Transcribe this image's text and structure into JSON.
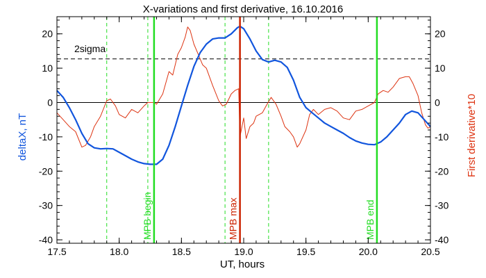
{
  "chart_data": {
    "type": "line",
    "title": "X-variations and first derivative, 16.10.2016",
    "xlabel": "UT, hours",
    "ylabel_left": "deltaX, nT",
    "ylabel_right": "First derivative*10",
    "xlim": [
      17.5,
      20.5
    ],
    "ylim_left": [
      -41,
      25
    ],
    "ylim_right": [
      -41,
      25
    ],
    "x_ticks": [
      "17.5",
      "18.0",
      "18.5",
      "19.0",
      "19.5",
      "20.0",
      "20.5"
    ],
    "y_ticks": [
      "20",
      "10",
      "0",
      "-10",
      "-20",
      "-30",
      "-40"
    ],
    "threshold": {
      "label": "2sigma",
      "value": 12.7
    },
    "vertical_markers": [
      {
        "x": 18.28,
        "label": "MPB begin",
        "color": "#22dd22",
        "style": "solid"
      },
      {
        "x": 18.97,
        "label": "MPB max",
        "color": "#cc2200",
        "style": "solid"
      },
      {
        "x": 20.07,
        "label": "MPB end",
        "color": "#22dd22",
        "style": "solid"
      }
    ],
    "dashed_markers": [
      {
        "x": 17.9,
        "color": "#22dd22"
      },
      {
        "x": 18.23,
        "color": "#22dd22"
      },
      {
        "x": 18.85,
        "color": "#22dd22"
      },
      {
        "x": 19.2,
        "color": "#22dd22"
      }
    ],
    "series": [
      {
        "name": "deltaX, nT",
        "color": "#1155dd",
        "axis": "left",
        "points": [
          [
            17.5,
            3.5
          ],
          [
            17.55,
            1.5
          ],
          [
            17.6,
            -1.5
          ],
          [
            17.65,
            -5
          ],
          [
            17.7,
            -9
          ],
          [
            17.75,
            -12
          ],
          [
            17.8,
            -13.2
          ],
          [
            17.85,
            -13.5
          ],
          [
            17.9,
            -13.4
          ],
          [
            17.95,
            -13.5
          ],
          [
            18.0,
            -14.5
          ],
          [
            18.05,
            -15.5
          ],
          [
            18.1,
            -16.5
          ],
          [
            18.15,
            -17.3
          ],
          [
            18.2,
            -17.8
          ],
          [
            18.25,
            -18.0
          ],
          [
            18.3,
            -18.0
          ],
          [
            18.35,
            -16.5
          ],
          [
            18.4,
            -12.5
          ],
          [
            18.45,
            -7
          ],
          [
            18.5,
            -1
          ],
          [
            18.55,
            5
          ],
          [
            18.6,
            10.5
          ],
          [
            18.65,
            14.5
          ],
          [
            18.7,
            17
          ],
          [
            18.75,
            18.5
          ],
          [
            18.8,
            18.8
          ],
          [
            18.85,
            18.8
          ],
          [
            18.9,
            20
          ],
          [
            18.95,
            21.8
          ],
          [
            18.97,
            22.2
          ],
          [
            19.0,
            21.5
          ],
          [
            19.05,
            18.5
          ],
          [
            19.1,
            15
          ],
          [
            19.15,
            12.5
          ],
          [
            19.2,
            11.8
          ],
          [
            19.25,
            12.3
          ],
          [
            19.3,
            11.8
          ],
          [
            19.35,
            10.2
          ],
          [
            19.4,
            6.5
          ],
          [
            19.45,
            1.5
          ],
          [
            19.5,
            -1.5
          ],
          [
            19.55,
            -3
          ],
          [
            19.6,
            -4.5
          ],
          [
            19.65,
            -6
          ],
          [
            19.7,
            -7
          ],
          [
            19.75,
            -8
          ],
          [
            19.8,
            -9
          ],
          [
            19.85,
            -10.2
          ],
          [
            19.9,
            -11.2
          ],
          [
            19.95,
            -11.8
          ],
          [
            20.0,
            -12.2
          ],
          [
            20.05,
            -12.3
          ],
          [
            20.1,
            -11.5
          ],
          [
            20.15,
            -10
          ],
          [
            20.2,
            -8
          ],
          [
            20.25,
            -6
          ],
          [
            20.3,
            -3.5
          ],
          [
            20.35,
            -2.5
          ],
          [
            20.4,
            -3
          ],
          [
            20.45,
            -5
          ],
          [
            20.5,
            -7
          ]
        ]
      },
      {
        "name": "First derivative*10",
        "color": "#dd3311",
        "axis": "right",
        "points": [
          [
            17.5,
            -3
          ],
          [
            17.55,
            -5
          ],
          [
            17.6,
            -7
          ],
          [
            17.65,
            -8.5
          ],
          [
            17.7,
            -13
          ],
          [
            17.73,
            -12.5
          ],
          [
            17.77,
            -10
          ],
          [
            17.8,
            -7
          ],
          [
            17.85,
            -4
          ],
          [
            17.9,
            0.5
          ],
          [
            17.93,
            1
          ],
          [
            17.97,
            -1
          ],
          [
            18.0,
            -3.5
          ],
          [
            18.05,
            -4.5
          ],
          [
            18.1,
            -2
          ],
          [
            18.15,
            -3
          ],
          [
            18.2,
            -1
          ],
          [
            18.23,
            0
          ],
          [
            18.28,
            0
          ],
          [
            18.3,
            -0.5
          ],
          [
            18.35,
            2.5
          ],
          [
            18.4,
            9
          ],
          [
            18.43,
            8
          ],
          [
            18.47,
            14
          ],
          [
            18.5,
            16
          ],
          [
            18.53,
            19
          ],
          [
            18.55,
            22
          ],
          [
            18.57,
            21
          ],
          [
            18.6,
            17
          ],
          [
            18.63,
            14.5
          ],
          [
            18.67,
            11
          ],
          [
            18.7,
            10
          ],
          [
            18.75,
            5
          ],
          [
            18.8,
            0.5
          ],
          [
            18.83,
            -1
          ],
          [
            18.86,
            -0.5
          ],
          [
            18.9,
            2.5
          ],
          [
            18.93,
            3.5
          ],
          [
            18.96,
            4
          ],
          [
            18.97,
            -10
          ],
          [
            19.0,
            -4.5
          ],
          [
            19.02,
            -10.5
          ],
          [
            19.05,
            -7
          ],
          [
            19.08,
            -6
          ],
          [
            19.1,
            -4
          ],
          [
            19.15,
            -3
          ],
          [
            19.18,
            -1
          ],
          [
            19.22,
            1.5
          ],
          [
            19.26,
            -0.5
          ],
          [
            19.3,
            -4
          ],
          [
            19.33,
            -7
          ],
          [
            19.37,
            -8.5
          ],
          [
            19.4,
            -10
          ],
          [
            19.43,
            -13
          ],
          [
            19.45,
            -12
          ],
          [
            19.5,
            -8
          ],
          [
            19.53,
            -3.5
          ],
          [
            19.56,
            -2
          ],
          [
            19.6,
            -3.5
          ],
          [
            19.65,
            -2
          ],
          [
            19.7,
            -1.5
          ],
          [
            19.75,
            -2.5
          ],
          [
            19.8,
            -4.5
          ],
          [
            19.85,
            -5
          ],
          [
            19.9,
            -2.5
          ],
          [
            19.95,
            -2
          ],
          [
            20.0,
            -1
          ],
          [
            20.05,
            0
          ],
          [
            20.08,
            2.5
          ],
          [
            20.12,
            3.5
          ],
          [
            20.16,
            3
          ],
          [
            20.2,
            4.5
          ],
          [
            20.25,
            7
          ],
          [
            20.3,
            7.5
          ],
          [
            20.33,
            7.5
          ],
          [
            20.36,
            5.5
          ],
          [
            20.4,
            2
          ],
          [
            20.43,
            -3
          ],
          [
            20.46,
            -6.5
          ],
          [
            20.48,
            -7.5
          ],
          [
            20.5,
            -7
          ]
        ]
      }
    ],
    "grid": false
  }
}
